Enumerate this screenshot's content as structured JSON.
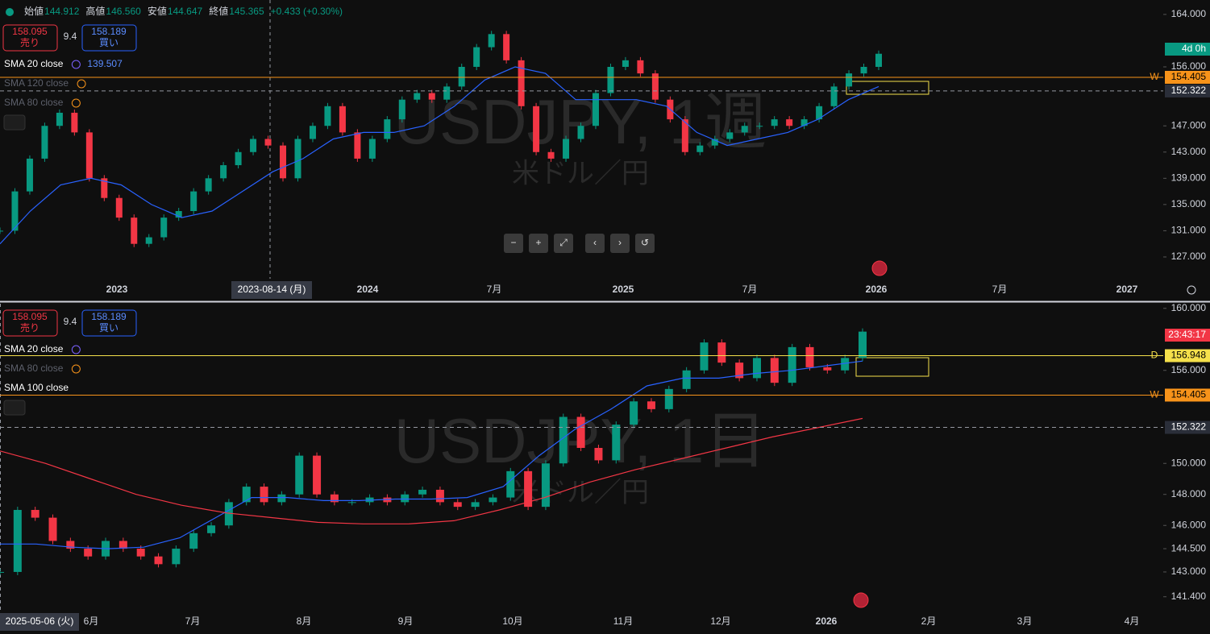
{
  "weekly": {
    "ohlc": [
      {
        "label": "始値",
        "value": "144.912"
      },
      {
        "label": "高値",
        "value": "146.560"
      },
      {
        "label": "安値",
        "value": "144.647"
      },
      {
        "label": "終値",
        "value": "145.365"
      }
    ],
    "change": "+0.433 (+0.30%)",
    "sell": {
      "price": "158.095",
      "label": "売り"
    },
    "spread": "9.4",
    "buy": {
      "price": "158.189",
      "label": "買い"
    },
    "indicators": [
      {
        "name": "SMA 20 close",
        "value": "139.507"
      },
      {
        "name": "SMA 120 close"
      },
      {
        "name": "SMA 80 close"
      }
    ],
    "symbol": "USDJPY, 1週",
    "description": "米ドル／円",
    "ylim": [
      123.8,
      166.2
    ],
    "yticks": [
      {
        "value": 164,
        "label": "164.000"
      },
      {
        "value": 156,
        "label": "156.000"
      },
      {
        "value": 147,
        "label": "147.000"
      },
      {
        "value": 143,
        "label": "143.000"
      },
      {
        "value": 139,
        "label": "139.000"
      },
      {
        "value": 135,
        "label": "135.000"
      },
      {
        "value": 131,
        "label": "131.000"
      },
      {
        "value": 127,
        "label": "127.000"
      }
    ],
    "closes": [
      131,
      137,
      142,
      147,
      149,
      146,
      139,
      136,
      133,
      129,
      130,
      133,
      134,
      137,
      139,
      141,
      143,
      145,
      144,
      139,
      145,
      147,
      150,
      146,
      142,
      145,
      148,
      151,
      152,
      151,
      153,
      156,
      159,
      161,
      157,
      150,
      143,
      142,
      145,
      147,
      152,
      156,
      157,
      155,
      151,
      148,
      143,
      144,
      145,
      146,
      147,
      147,
      148,
      147,
      148,
      150,
      153,
      155,
      156,
      158
    ],
    "sma20": [
      129,
      134,
      138,
      139,
      138,
      135,
      133,
      134,
      137,
      140,
      142,
      145,
      146,
      146,
      147,
      150,
      154,
      156,
      155,
      151,
      151,
      151,
      150,
      146,
      144,
      145,
      146,
      148,
      151,
      153
    ],
    "countdown": "4d 0h",
    "levels": [
      {
        "value": 154.405,
        "tag": "W",
        "color": "#f7931a"
      },
      {
        "value": 152.322,
        "color": "#9598a1"
      }
    ],
    "time_labels": [
      "2023",
      "2024",
      "7月",
      "2025",
      "7月",
      "2026",
      "7月",
      "2027"
    ],
    "crosshair_date": "2023-08-14 (月)"
  },
  "daily": {
    "sell": {
      "price": "158.095",
      "label": "売り"
    },
    "spread": "9.4",
    "buy": {
      "price": "158.189",
      "label": "買い"
    },
    "indicators": [
      {
        "name": "SMA 20 close"
      },
      {
        "name": "SMA 80 close"
      },
      {
        "name": "SMA 100 close"
      }
    ],
    "symbol": "USDJPY, 1日",
    "description": "米ドル／円",
    "ylim": [
      140.4,
      160.3
    ],
    "yticks": [
      {
        "value": 160,
        "label": "160.000"
      },
      {
        "value": 156,
        "label": "156.000"
      },
      {
        "value": 150,
        "label": "150.000"
      },
      {
        "value": 148,
        "label": "148.000"
      },
      {
        "value": 146,
        "label": "146.000"
      },
      {
        "value": 144.5,
        "label": "144.500"
      },
      {
        "value": 143,
        "label": "143.000"
      },
      {
        "value": 141.4,
        "label": "141.400"
      }
    ],
    "closes": [
      143,
      147,
      146.5,
      145,
      144.5,
      144,
      145,
      144.5,
      144,
      143.5,
      144.5,
      145.5,
      146,
      147.5,
      148.5,
      147.5,
      148,
      150.5,
      148,
      147.5,
      147.5,
      147.8,
      147.5,
      148,
      148.3,
      147.5,
      147.2,
      147.5,
      147.8,
      149.5,
      147.2,
      150,
      153,
      151,
      150.2,
      152.5,
      154,
      153.5,
      154.8,
      156,
      157.8,
      156.5,
      155.5,
      156.8,
      155.2,
      157.5,
      156.2,
      156,
      156.8,
      158.5
    ],
    "sma20": [
      144.8,
      144.8,
      144.6,
      144.5,
      144.6,
      145.2,
      146.5,
      147.8,
      147.8,
      147.6,
      147.6,
      147.7,
      147.7,
      147.8,
      148.5,
      150.5,
      152.2,
      153.5,
      155,
      155.5,
      155.5,
      155.8,
      156,
      156.3,
      156.6
    ],
    "sma100": [
      150.8,
      150,
      149,
      148,
      147.3,
      146.8,
      146.5,
      146.2,
      146.1,
      146.1,
      146.3,
      147,
      147.8,
      148.8,
      149.6,
      150.3,
      151,
      151.7,
      152.3,
      152.9
    ],
    "countdown": "23:43:17",
    "levels": [
      {
        "value": 156.948,
        "tag": "D",
        "color": "#f5e04b"
      },
      {
        "value": 154.405,
        "tag": "W",
        "color": "#f7931a"
      },
      {
        "value": 152.322,
        "color": "#9598a1"
      }
    ],
    "time_labels": [
      "6月",
      "7月",
      "8月",
      "9月",
      "10月",
      "11月",
      "12月",
      "2026",
      "2月",
      "3月",
      "4月"
    ],
    "crosshair_date": "2025-05-06 (火)"
  },
  "controls": [
    "−",
    "+",
    "⤢",
    "‹",
    "›",
    "↺"
  ]
}
